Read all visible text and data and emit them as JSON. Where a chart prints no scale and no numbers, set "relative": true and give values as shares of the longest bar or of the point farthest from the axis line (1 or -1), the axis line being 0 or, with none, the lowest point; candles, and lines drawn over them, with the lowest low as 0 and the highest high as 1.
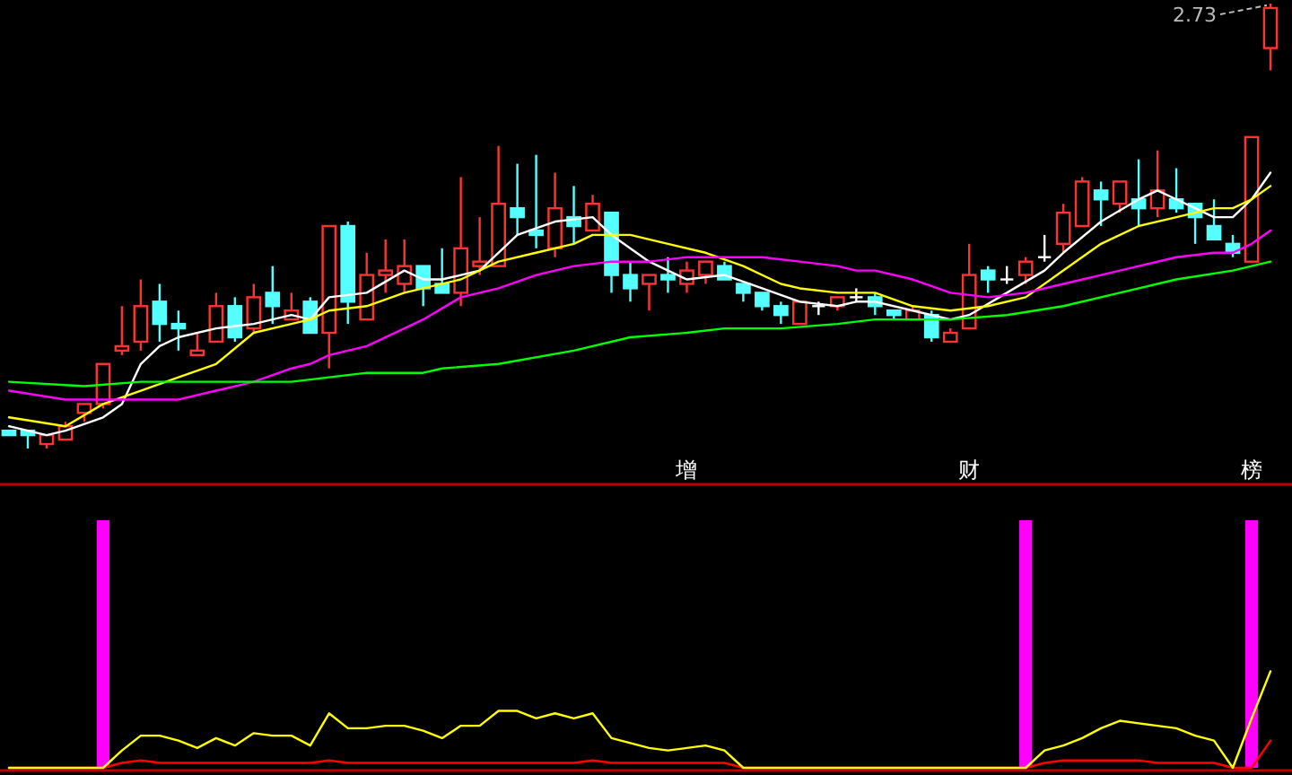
{
  "chart_data": [
    {
      "type": "candlestick",
      "relative": true,
      "tick_labels": false,
      "categories": [
        null,
        null,
        null,
        null,
        null,
        null,
        null,
        null,
        null,
        null,
        null,
        null,
        null,
        null,
        null,
        null,
        null,
        null,
        null,
        null,
        null,
        null,
        null,
        null,
        null,
        null,
        null,
        null,
        null,
        null,
        null,
        null,
        null,
        null,
        null,
        null,
        null,
        null,
        null,
        null,
        null,
        null,
        null,
        null,
        null,
        null,
        null,
        null,
        null,
        null,
        null,
        null,
        null,
        null,
        null,
        null,
        null,
        null,
        null,
        null,
        null,
        null,
        null,
        null,
        null,
        null,
        null,
        null
      ],
      "ohlc": [
        [
          0.04,
          0.04,
          0.03,
          0.03
        ],
        [
          0.04,
          0.04,
          0.0,
          0.03
        ],
        [
          0.01,
          0.03,
          0.0,
          0.03
        ],
        [
          0.02,
          0.06,
          0.02,
          0.05
        ],
        [
          0.08,
          0.1,
          0.06,
          0.1
        ],
        [
          0.1,
          0.19,
          0.09,
          0.19
        ],
        [
          0.22,
          0.32,
          0.21,
          0.23
        ],
        [
          0.24,
          0.38,
          0.22,
          0.32
        ],
        [
          0.33,
          0.37,
          0.24,
          0.28
        ],
        [
          0.28,
          0.31,
          0.22,
          0.27
        ],
        [
          0.21,
          0.26,
          0.21,
          0.22
        ],
        [
          0.24,
          0.35,
          0.24,
          0.32
        ],
        [
          0.32,
          0.34,
          0.24,
          0.25
        ],
        [
          0.27,
          0.37,
          0.26,
          0.34
        ],
        [
          0.35,
          0.41,
          0.28,
          0.32
        ],
        [
          0.29,
          0.35,
          0.29,
          0.31
        ],
        [
          0.33,
          0.34,
          0.26,
          0.26
        ],
        [
          0.26,
          0.5,
          0.18,
          0.5
        ],
        [
          0.5,
          0.51,
          0.28,
          0.33
        ],
        [
          0.29,
          0.44,
          0.29,
          0.39
        ],
        [
          0.39,
          0.47,
          0.35,
          0.4
        ],
        [
          0.37,
          0.47,
          0.35,
          0.41
        ],
        [
          0.41,
          0.41,
          0.32,
          0.36
        ],
        [
          0.37,
          0.45,
          0.35,
          0.35
        ],
        [
          0.35,
          0.61,
          0.32,
          0.45
        ],
        [
          0.41,
          0.52,
          0.39,
          0.42
        ],
        [
          0.41,
          0.68,
          0.41,
          0.55
        ],
        [
          0.54,
          0.64,
          0.48,
          0.52
        ],
        [
          0.49,
          0.66,
          0.45,
          0.48
        ],
        [
          0.45,
          0.62,
          0.43,
          0.54
        ],
        [
          0.52,
          0.59,
          0.46,
          0.5
        ],
        [
          0.49,
          0.57,
          0.49,
          0.55
        ],
        [
          0.53,
          0.53,
          0.35,
          0.39
        ],
        [
          0.39,
          0.42,
          0.33,
          0.36
        ],
        [
          0.37,
          0.39,
          0.31,
          0.39
        ],
        [
          0.39,
          0.43,
          0.35,
          0.38
        ],
        [
          0.37,
          0.42,
          0.35,
          0.4
        ],
        [
          0.39,
          0.42,
          0.37,
          0.42
        ],
        [
          0.41,
          0.42,
          0.38,
          0.38
        ],
        [
          0.37,
          0.37,
          0.33,
          0.35
        ],
        [
          0.35,
          0.35,
          0.31,
          0.32
        ],
        [
          0.32,
          0.33,
          0.28,
          0.3
        ],
        [
          0.28,
          0.33,
          0.28,
          0.33
        ],
        [
          0.32,
          0.33,
          0.3,
          0.32
        ],
        [
          0.32,
          0.34,
          0.31,
          0.34
        ],
        [
          0.34,
          0.36,
          0.33,
          0.34
        ],
        [
          0.34,
          0.35,
          0.3,
          0.32
        ],
        [
          0.31,
          0.31,
          0.29,
          0.3
        ],
        [
          0.29,
          0.32,
          0.29,
          0.31
        ],
        [
          0.3,
          0.31,
          0.24,
          0.25
        ],
        [
          0.24,
          0.27,
          0.24,
          0.26
        ],
        [
          0.27,
          0.46,
          0.27,
          0.39
        ],
        [
          0.4,
          0.41,
          0.35,
          0.38
        ],
        [
          0.38,
          0.41,
          0.37,
          0.38
        ],
        [
          0.39,
          0.43,
          0.37,
          0.42
        ],
        [
          0.43,
          0.48,
          0.42,
          0.43
        ],
        [
          0.46,
          0.55,
          0.44,
          0.53
        ],
        [
          0.5,
          0.61,
          0.5,
          0.6
        ],
        [
          0.58,
          0.6,
          0.5,
          0.56
        ],
        [
          0.55,
          0.6,
          0.53,
          0.6
        ],
        [
          0.56,
          0.65,
          0.5,
          0.54
        ],
        [
          0.54,
          0.67,
          0.52,
          0.58
        ],
        [
          0.56,
          0.63,
          0.53,
          0.54
        ],
        [
          0.55,
          0.55,
          0.46,
          0.52
        ],
        [
          0.5,
          0.56,
          0.47,
          0.47
        ],
        [
          0.46,
          0.48,
          0.43,
          0.44
        ],
        [
          0.42,
          0.7,
          0.42,
          0.7
        ],
        [
          0.9,
          1.0,
          0.85,
          0.99
        ]
      ],
      "series": [
        {
          "type": "line",
          "color": "#ffffff",
          "values": [
            0.05,
            null,
            0.03,
            0.04,
            null,
            0.07,
            0.1,
            0.19,
            0.23,
            0.25,
            null,
            0.27,
            null,
            0.28,
            null,
            0.3,
            0.29,
            0.34,
            null,
            0.35,
            null,
            0.4,
            0.38,
            0.38,
            null,
            0.4,
            null,
            0.48,
            null,
            0.51,
            null,
            0.52,
            0.48,
            null,
            0.42,
            null,
            0.38,
            null,
            0.39,
            null,
            0.36,
            null,
            0.33,
            null,
            0.32,
            0.33,
            0.33,
            null,
            0.31,
            null,
            0.29,
            0.3,
            null,
            0.35,
            null,
            0.4,
            0.44,
            null,
            0.51,
            null,
            0.56,
            0.58,
            0.56,
            0.54,
            0.52,
            0.52,
            0.56,
            0.62
          ]
        },
        {
          "type": "line",
          "color": "#ffff00",
          "values": [
            0.07,
            null,
            null,
            0.05,
            null,
            0.1,
            null,
            0.13,
            null,
            0.16,
            null,
            0.19,
            null,
            0.26,
            null,
            0.28,
            0.29,
            0.31,
            null,
            0.32,
            null,
            0.35,
            0.36,
            null,
            0.38,
            null,
            0.42,
            null,
            0.44,
            null,
            0.46,
            0.48,
            null,
            0.48,
            null,
            0.46,
            null,
            0.44,
            null,
            0.41,
            null,
            0.37,
            0.36,
            null,
            0.35,
            0.35,
            0.35,
            null,
            0.32,
            null,
            0.31,
            null,
            0.32,
            null,
            0.34,
            null,
            0.4,
            null,
            0.46,
            null,
            0.5,
            null,
            0.52,
            null,
            0.54,
            0.54,
            0.56,
            0.59
          ]
        },
        {
          "type": "line",
          "color": "#ff00ff",
          "values": [
            0.13,
            null,
            null,
            0.11,
            null,
            null,
            0.11,
            null,
            null,
            0.11,
            null,
            0.13,
            null,
            0.15,
            null,
            0.18,
            0.19,
            0.21,
            null,
            0.23,
            null,
            0.27,
            0.29,
            null,
            0.34,
            null,
            0.36,
            null,
            0.39,
            null,
            0.41,
            null,
            0.42,
            null,
            0.42,
            null,
            0.43,
            null,
            0.43,
            null,
            0.43,
            null,
            0.42,
            null,
            0.41,
            0.4,
            0.4,
            null,
            0.38,
            null,
            0.35,
            null,
            0.34,
            null,
            0.35,
            null,
            0.37,
            null,
            0.39,
            null,
            0.41,
            null,
            0.43,
            null,
            0.44,
            0.44,
            0.46,
            0.49
          ]
        },
        {
          "type": "line",
          "color": "#00ff00",
          "values": [
            0.15,
            null,
            null,
            null,
            0.14,
            null,
            null,
            0.15,
            null,
            null,
            null,
            0.15,
            null,
            null,
            null,
            0.15,
            null,
            null,
            null,
            0.17,
            null,
            null,
            0.17,
            0.18,
            null,
            null,
            0.19,
            null,
            null,
            null,
            0.22,
            null,
            null,
            0.25,
            null,
            null,
            0.26,
            null,
            0.27,
            null,
            null,
            0.27,
            null,
            null,
            0.28,
            null,
            0.29,
            null,
            null,
            null,
            0.29,
            null,
            null,
            0.3,
            null,
            null,
            0.32,
            null,
            null,
            0.35,
            null,
            null,
            0.38,
            null,
            null,
            0.4,
            null,
            0.42
          ]
        }
      ],
      "annotations": [
        "2.73"
      ]
    },
    {
      "type": "line",
      "relative": true,
      "tick_labels": "x",
      "categories": [
        null,
        null,
        null,
        null,
        null,
        null,
        null,
        null,
        null,
        null,
        null,
        null,
        null,
        null,
        null,
        null,
        null,
        null,
        null,
        null,
        null,
        null,
        null,
        null,
        null,
        null,
        null,
        null,
        null,
        null,
        null,
        null,
        null,
        null,
        null,
        null,
        "增",
        null,
        null,
        null,
        null,
        null,
        null,
        null,
        null,
        null,
        null,
        null,
        null,
        null,
        null,
        "财",
        null,
        null,
        null,
        null,
        null,
        null,
        null,
        null,
        null,
        null,
        null,
        null,
        null,
        null,
        "榜",
        null
      ],
      "series": [
        {
          "type": "bar",
          "color": "#ff00ff",
          "values": [
            null,
            null,
            null,
            null,
            null,
            1,
            null,
            null,
            null,
            null,
            null,
            null,
            null,
            null,
            null,
            null,
            null,
            null,
            null,
            null,
            null,
            null,
            null,
            null,
            null,
            null,
            null,
            null,
            null,
            null,
            null,
            null,
            null,
            null,
            null,
            null,
            null,
            null,
            null,
            null,
            null,
            null,
            null,
            null,
            null,
            null,
            null,
            null,
            null,
            null,
            null,
            null,
            null,
            null,
            1,
            null,
            null,
            null,
            null,
            null,
            null,
            null,
            null,
            null,
            null,
            null,
            1,
            null
          ]
        },
        {
          "type": "line",
          "color": "#ff0000",
          "values": [
            0,
            0,
            0,
            0,
            0,
            0,
            0.02,
            0.03,
            0.02,
            0.02,
            0.02,
            0.02,
            0.02,
            0.02,
            0.02,
            0.02,
            0.02,
            0.03,
            0.02,
            0.02,
            0.02,
            0.02,
            0.02,
            0.02,
            0.02,
            0.02,
            0.02,
            0.02,
            0.02,
            0.02,
            0.02,
            0.03,
            0.02,
            0.02,
            0.02,
            0.02,
            0.02,
            0.02,
            0.02,
            0,
            0,
            0,
            0,
            0,
            0,
            0,
            0,
            0,
            0,
            0,
            0,
            0,
            0,
            0,
            0,
            0.02,
            0.03,
            0.03,
            0.03,
            0.03,
            0.03,
            0.02,
            0.02,
            0.02,
            0.02,
            0,
            0,
            0.11
          ]
        },
        {
          "type": "line",
          "color": "#ffff00",
          "values": [
            0,
            0,
            0,
            0,
            0,
            0,
            0.07,
            0.13,
            0.13,
            0.11,
            0.08,
            0.12,
            0.09,
            0.14,
            0.13,
            0.13,
            0.09,
            0.22,
            0.16,
            0.16,
            0.17,
            0.17,
            0.15,
            0.12,
            0.17,
            0.17,
            0.23,
            0.23,
            0.2,
            0.22,
            0.2,
            0.22,
            0.12,
            0.1,
            0.08,
            0.07,
            0.08,
            0.09,
            0.07,
            0,
            0,
            0,
            0,
            0,
            0,
            0,
            0,
            0,
            0,
            0,
            0,
            0,
            0,
            0,
            0,
            0.07,
            0.09,
            0.12,
            0.16,
            0.19,
            0.18,
            0.17,
            0.16,
            0.13,
            0.11,
            0,
            0.2,
            0.39
          ]
        }
      ]
    }
  ]
}
